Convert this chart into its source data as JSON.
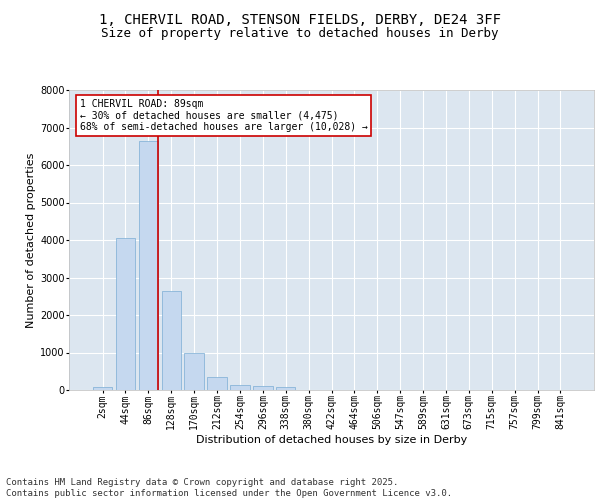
{
  "title_line1": "1, CHERVIL ROAD, STENSON FIELDS, DERBY, DE24 3FF",
  "title_line2": "Size of property relative to detached houses in Derby",
  "xlabel": "Distribution of detached houses by size in Derby",
  "ylabel": "Number of detached properties",
  "categories": [
    "2sqm",
    "44sqm",
    "86sqm",
    "128sqm",
    "170sqm",
    "212sqm",
    "254sqm",
    "296sqm",
    "338sqm",
    "380sqm",
    "422sqm",
    "464sqm",
    "506sqm",
    "547sqm",
    "589sqm",
    "631sqm",
    "673sqm",
    "715sqm",
    "757sqm",
    "799sqm",
    "841sqm"
  ],
  "values": [
    70,
    4050,
    6650,
    2650,
    1000,
    350,
    130,
    110,
    80,
    0,
    0,
    0,
    0,
    0,
    0,
    0,
    0,
    0,
    0,
    0,
    0
  ],
  "bar_color": "#c5d8ef",
  "bar_edge_color": "#7aadd4",
  "vline_color": "#cc0000",
  "annotation_text": "1 CHERVIL ROAD: 89sqm\n← 30% of detached houses are smaller (4,475)\n68% of semi-detached houses are larger (10,028) →",
  "annotation_box_color": "#ffffff",
  "annotation_box_edge": "#cc0000",
  "ylim": [
    0,
    8000
  ],
  "yticks": [
    0,
    1000,
    2000,
    3000,
    4000,
    5000,
    6000,
    7000,
    8000
  ],
  "plot_background": "#dce6f0",
  "footer_text": "Contains HM Land Registry data © Crown copyright and database right 2025.\nContains public sector information licensed under the Open Government Licence v3.0.",
  "title_fontsize": 10,
  "subtitle_fontsize": 9,
  "axis_label_fontsize": 8,
  "tick_fontsize": 7,
  "footer_fontsize": 6.5
}
